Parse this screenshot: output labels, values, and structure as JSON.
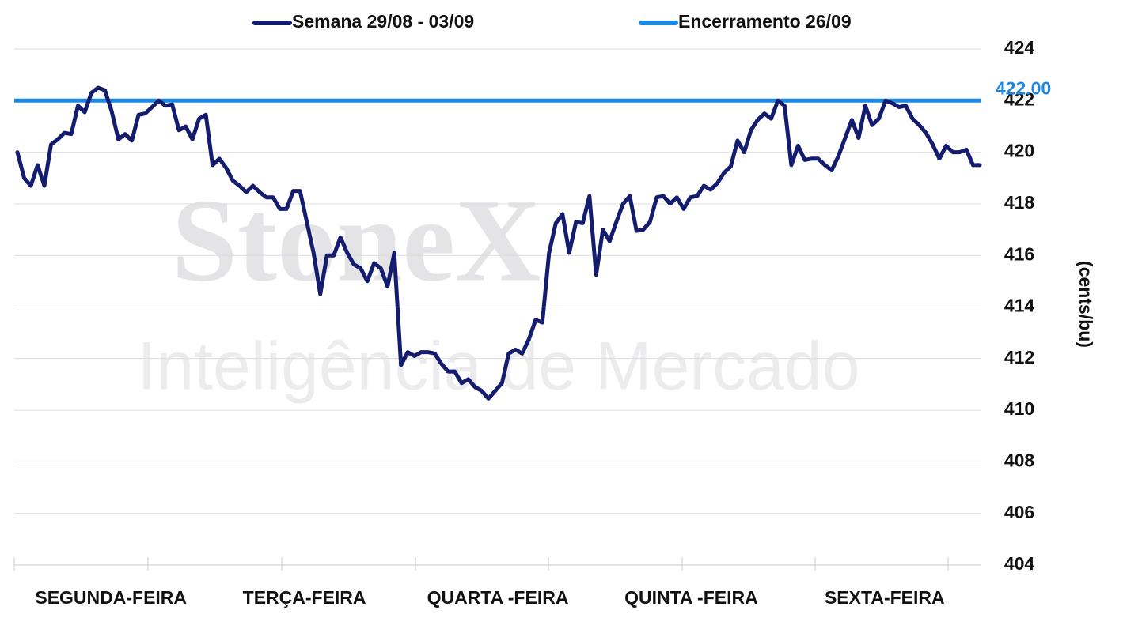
{
  "chart_data": {
    "type": "line",
    "watermark": [
      "StoneX",
      "Inteligência de Mercado"
    ],
    "ylabel": "(cents/bu)",
    "day_labels": [
      "SEGUNDA-FEIRA",
      "TERÇA-FEIRA",
      "QUARTA -FEIRA",
      "QUINTA -FEIRA",
      "SEXTA-FEIRA"
    ],
    "ylim": [
      404,
      424
    ],
    "yticks": [
      404,
      406,
      408,
      410,
      412,
      414,
      416,
      418,
      420,
      422,
      424
    ],
    "grid": true,
    "series": [
      {
        "name": "Semana 29/08 - 03/09",
        "color": "#141c6e",
        "values": [
          420.0,
          419.0,
          418.7,
          419.5,
          418.7,
          420.3,
          420.5,
          420.75,
          420.7,
          421.8,
          421.55,
          422.3,
          422.5,
          422.4,
          421.6,
          420.5,
          420.7,
          420.45,
          421.45,
          421.5,
          421.75,
          422.0,
          421.8,
          421.85,
          420.85,
          421.0,
          420.5,
          421.3,
          421.45,
          419.5,
          419.75,
          419.4,
          418.9,
          418.7,
          418.45,
          418.7,
          418.45,
          418.25,
          418.25,
          417.8,
          417.8,
          418.5,
          418.5,
          417.3,
          416.1,
          414.5,
          416.0,
          416.0,
          416.7,
          416.1,
          415.65,
          415.5,
          415.0,
          415.7,
          415.5,
          414.8,
          416.1,
          411.75,
          412.25,
          412.1,
          412.25,
          412.25,
          412.2,
          411.8,
          411.5,
          411.5,
          411.05,
          411.2,
          410.9,
          410.75,
          410.45,
          410.75,
          411.05,
          412.2,
          412.35,
          412.2,
          412.75,
          413.5,
          413.4,
          416.1,
          417.25,
          417.6,
          416.1,
          417.3,
          417.25,
          418.3,
          415.25,
          417.0,
          416.55,
          417.3,
          418.0,
          418.3,
          416.95,
          417.0,
          417.3,
          418.25,
          418.3,
          418.0,
          418.25,
          417.8,
          418.25,
          418.3,
          418.7,
          418.55,
          418.8,
          419.2,
          419.45,
          420.45,
          420.0,
          420.85,
          421.25,
          421.5,
          421.3,
          422.0,
          421.8,
          419.5,
          420.25,
          419.7,
          419.75,
          419.75,
          419.5,
          419.3,
          419.85,
          420.55,
          421.25,
          420.55,
          421.8,
          421.05,
          421.3,
          422.0,
          421.9,
          421.75,
          421.8,
          421.3,
          421.05,
          420.75,
          420.3,
          419.75,
          420.25,
          420.0,
          420.0,
          420.1,
          419.5,
          419.5
        ]
      }
    ],
    "reference_line": {
      "name": "Encerramento 26/09",
      "color": "#1e88e5",
      "value": 422,
      "value_label": "422.00"
    }
  }
}
